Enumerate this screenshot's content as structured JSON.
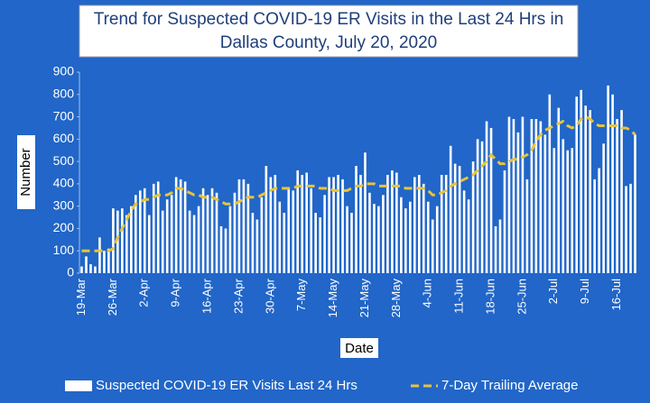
{
  "chart_data": {
    "type": "bar-line",
    "title": [
      "Trend for Suspected COVID-19 ER Visits in the Last 24 Hrs in",
      "Dallas County, July 20, 2020"
    ],
    "x_label": "Date",
    "y_label": "Number",
    "categories": [
      "19-Mar",
      null,
      null,
      null,
      null,
      null,
      null,
      "26-Mar",
      null,
      null,
      null,
      null,
      null,
      null,
      "2-Apr",
      null,
      null,
      null,
      null,
      null,
      null,
      "9-Apr",
      null,
      null,
      null,
      null,
      null,
      null,
      "16-Apr",
      null,
      null,
      null,
      null,
      null,
      null,
      "23-Apr",
      null,
      null,
      null,
      null,
      null,
      null,
      "30-Apr",
      null,
      null,
      null,
      null,
      null,
      null,
      "7-May",
      null,
      null,
      null,
      null,
      null,
      null,
      "14-May",
      null,
      null,
      null,
      null,
      null,
      null,
      "21-May",
      null,
      null,
      null,
      null,
      null,
      null,
      "28-May",
      null,
      null,
      null,
      null,
      null,
      null,
      "4-Jun",
      null,
      null,
      null,
      null,
      null,
      null,
      "11-Jun",
      null,
      null,
      null,
      null,
      null,
      null,
      "18-Jun",
      null,
      null,
      null,
      null,
      null,
      null,
      "25-Jun",
      null,
      null,
      null,
      null,
      null,
      null,
      "2-Jul",
      null,
      null,
      null,
      null,
      null,
      null,
      "9-Jul",
      null,
      null,
      null,
      null,
      null,
      null,
      "16-Jul",
      null,
      null,
      null,
      null
    ],
    "series": [
      {
        "name": "Suspected COVID-19 ER Visits Last 24 Hrs",
        "type": "bar",
        "color": "#ffffff",
        "values": [
          30,
          75,
          40,
          30,
          160,
          100,
          110,
          290,
          280,
          290,
          260,
          300,
          350,
          370,
          380,
          260,
          400,
          410,
          280,
          330,
          350,
          430,
          420,
          410,
          280,
          260,
          300,
          380,
          350,
          380,
          360,
          210,
          200,
          300,
          360,
          420,
          420,
          400,
          270,
          240,
          340,
          480,
          430,
          440,
          320,
          270,
          380,
          370,
          460,
          440,
          450,
          380,
          270,
          250,
          350,
          430,
          430,
          440,
          420,
          300,
          270,
          480,
          440,
          540,
          360,
          310,
          300,
          350,
          440,
          460,
          450,
          340,
          290,
          320,
          430,
          440,
          400,
          320,
          240,
          300,
          440,
          440,
          570,
          490,
          480,
          370,
          330,
          500,
          600,
          590,
          680,
          650,
          210,
          240,
          460,
          700,
          690,
          630,
          700,
          420,
          690,
          690,
          680,
          620,
          800,
          560,
          740,
          600,
          550,
          560,
          790,
          820,
          750,
          730,
          420,
          470,
          580,
          840,
          800,
          690,
          730,
          390,
          400,
          620
        ]
      },
      {
        "name": "7-Day Trailing Average",
        "type": "line",
        "color": "#e8c43a",
        "values": [
          100,
          100,
          100,
          100,
          100,
          100,
          100,
          110,
          160,
          200,
          240,
          280,
          310,
          320,
          330,
          330,
          340,
          350,
          350,
          350,
          360,
          380,
          380,
          370,
          360,
          350,
          350,
          340,
          340,
          340,
          330,
          320,
          310,
          310,
          310,
          320,
          330,
          340,
          340,
          340,
          350,
          360,
          370,
          380,
          380,
          380,
          380,
          380,
          390,
          390,
          390,
          390,
          390,
          380,
          380,
          380,
          370,
          370,
          370,
          370,
          380,
          390,
          390,
          400,
          400,
          400,
          390,
          390,
          390,
          390,
          390,
          390,
          380,
          380,
          380,
          380,
          380,
          370,
          350,
          350,
          360,
          370,
          390,
          400,
          410,
          420,
          430,
          440,
          460,
          480,
          500,
          530,
          510,
          490,
          490,
          500,
          510,
          510,
          520,
          530,
          550,
          590,
          620,
          640,
          650,
          660,
          670,
          680,
          660,
          650,
          660,
          690,
          700,
          690,
          670,
          660,
          660,
          660,
          660,
          660,
          650,
          650,
          640,
          620
        ]
      }
    ],
    "ylim": [
      0,
      900
    ],
    "yticks": [
      0,
      100,
      200,
      300,
      400,
      500,
      600,
      700,
      800,
      900
    ],
    "grid": false
  }
}
